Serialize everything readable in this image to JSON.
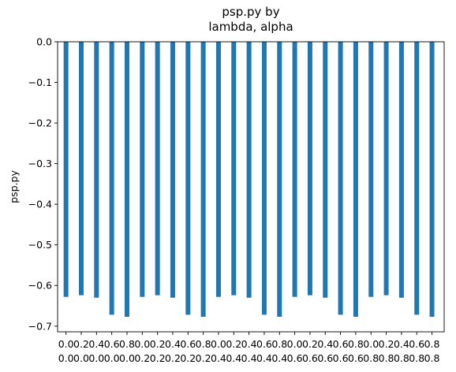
{
  "chart_data": {
    "type": "bar",
    "title_lines": [
      "psp.py by",
      "lambda, alpha"
    ],
    "xlabel": "",
    "ylabel": "psp.py",
    "ylim": [
      -0.714,
      0.0
    ],
    "yticks": [
      0.0,
      -0.1,
      -0.2,
      -0.3,
      -0.4,
      -0.5,
      -0.6,
      -0.7
    ],
    "ytick_labels": [
      "0.0",
      "−0.1",
      "−0.2",
      "−0.3",
      "−0.4",
      "−0.5",
      "−0.6",
      "−0.7"
    ],
    "grid": false,
    "bar_color": "#1f77b4",
    "categories": [
      [
        "0.0",
        "0.0"
      ],
      [
        "0.2",
        "0.0"
      ],
      [
        "0.4",
        "0.0"
      ],
      [
        "0.6",
        "0.0"
      ],
      [
        "0.8",
        "0.0"
      ],
      [
        "0.0",
        "0.2"
      ],
      [
        "0.2",
        "0.2"
      ],
      [
        "0.4",
        "0.2"
      ],
      [
        "0.6",
        "0.2"
      ],
      [
        "0.8",
        "0.2"
      ],
      [
        "0.0",
        "0.4"
      ],
      [
        "0.2",
        "0.4"
      ],
      [
        "0.4",
        "0.4"
      ],
      [
        "0.6",
        "0.4"
      ],
      [
        "0.8",
        "0.4"
      ],
      [
        "0.0",
        "0.6"
      ],
      [
        "0.2",
        "0.6"
      ],
      [
        "0.4",
        "0.6"
      ],
      [
        "0.6",
        "0.6"
      ],
      [
        "0.8",
        "0.6"
      ],
      [
        "0.0",
        "0.8"
      ],
      [
        "0.2",
        "0.8"
      ],
      [
        "0.4",
        "0.8"
      ],
      [
        "0.6",
        "0.8"
      ],
      [
        "0.8",
        "0.8"
      ]
    ],
    "values": [
      -0.628,
      -0.624,
      -0.63,
      -0.672,
      -0.677,
      -0.628,
      -0.624,
      -0.63,
      -0.672,
      -0.677,
      -0.628,
      -0.624,
      -0.63,
      -0.672,
      -0.677,
      -0.628,
      -0.624,
      -0.63,
      -0.672,
      -0.677,
      -0.628,
      -0.624,
      -0.63,
      -0.672,
      -0.677
    ]
  }
}
